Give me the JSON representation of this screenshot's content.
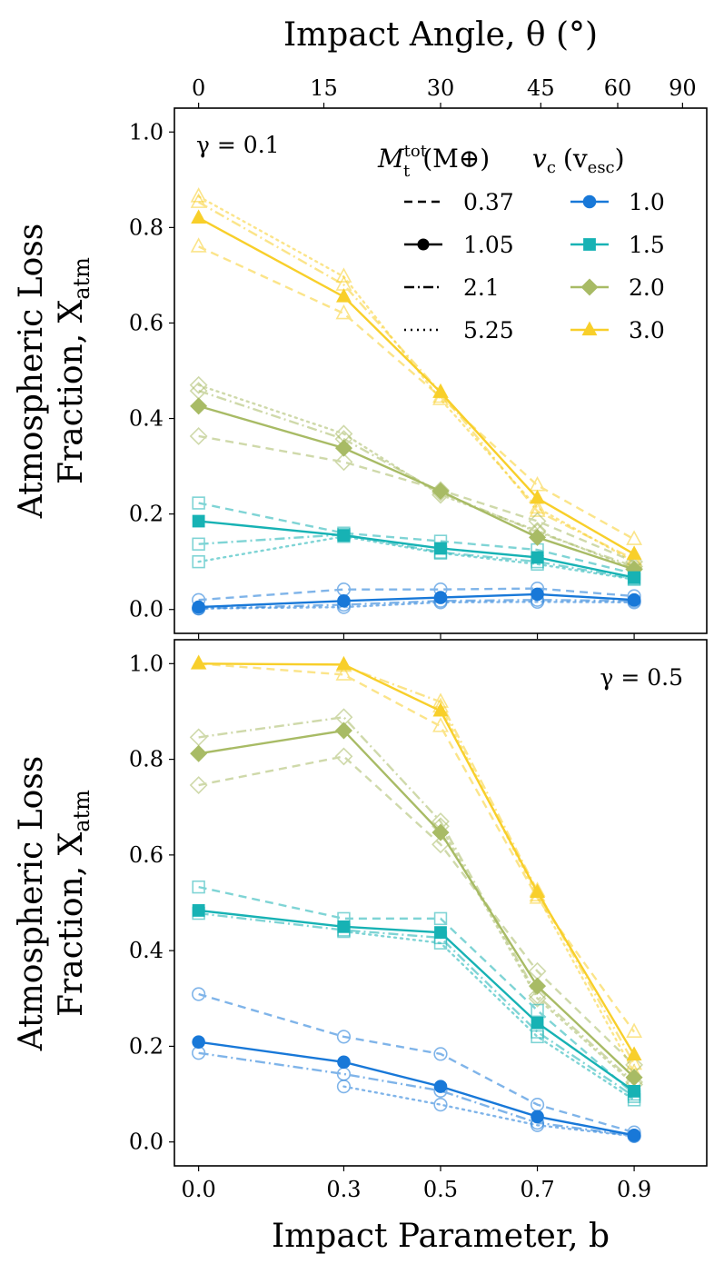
{
  "chart_data": {
    "type": "line",
    "top_axis": {
      "label": "Impact Angle, θ (°)",
      "ticks": [
        {
          "label": "0",
          "deg": 0
        },
        {
          "label": "15",
          "deg": 15
        },
        {
          "label": "30",
          "deg": 30
        },
        {
          "label": "45",
          "deg": 45
        },
        {
          "label": "60",
          "deg": 60
        },
        {
          "label": "90",
          "deg": 90
        }
      ],
      "relation": "b = sin(θ)"
    },
    "xlabel": "Impact Parameter, b",
    "x": [
      0.0,
      0.3,
      0.5,
      0.7,
      0.9
    ],
    "x_tick_labels": [
      "0.0",
      "0.3",
      "0.5",
      "0.7",
      "0.9"
    ],
    "xlim": [
      -0.05,
      1.05
    ],
    "ylabel_line1": "Atmospheric Loss",
    "ylabel_line2": "Fraction, X",
    "ylabel_sub": "atm",
    "ylim": [
      -0.05,
      1.05
    ],
    "y_ticks": [
      0.0,
      0.2,
      0.4,
      0.6,
      0.8,
      1.0
    ],
    "y_tick_labels": [
      "0.0",
      "0.2",
      "0.4",
      "0.6",
      "0.8",
      "1.0"
    ],
    "grid": false,
    "legend": {
      "placement": "top-right (upper panel)",
      "mass_title_main": "M",
      "mass_title_sup": "tot",
      "mass_title_sub": "t",
      "mass_title_unit": "(M⊕)",
      "vel_title_main": "v",
      "vel_title_sub": "c",
      "vel_title_unit_open": "(v",
      "vel_title_unit_sub": "esc",
      "vel_title_unit_close": ")",
      "mass_entries": [
        {
          "label": "0.37",
          "linestyle": "dashed"
        },
        {
          "label": "1.05",
          "linestyle": "solid"
        },
        {
          "label": "2.1",
          "linestyle": "dashdot"
        },
        {
          "label": "5.25",
          "linestyle": "dotted"
        }
      ],
      "velocity_entries": [
        {
          "label": "1.0",
          "color": "#1878d8",
          "marker": "circle"
        },
        {
          "label": "1.5",
          "color": "#17b2b4",
          "marker": "square"
        },
        {
          "label": "2.0",
          "color": "#a8bb65",
          "marker": "diamond"
        },
        {
          "label": "3.0",
          "color": "#f8cf2a",
          "marker": "triangle"
        }
      ]
    },
    "panels": [
      {
        "annotation": "γ = 0.1",
        "series": [
          {
            "vc": "3.0",
            "mass": "0.37",
            "values": [
              0.76,
              0.62,
              0.445,
              0.26,
              0.147
            ]
          },
          {
            "vc": "3.0",
            "mass": "1.05",
            "values": [
              0.82,
              0.655,
              0.455,
              0.233,
              0.116
            ]
          },
          {
            "vc": "3.0",
            "mass": "2.1",
            "values": [
              0.853,
              0.68,
              0.455,
              0.206,
              0.105
            ]
          },
          {
            "vc": "3.0",
            "mass": "5.25",
            "values": [
              0.865,
              0.697,
              0.44,
              0.213,
              0.1
            ]
          },
          {
            "vc": "2.0",
            "mass": "0.37",
            "values": [
              0.363,
              0.309,
              0.25,
              0.185,
              0.1
            ]
          },
          {
            "vc": "2.0",
            "mass": "1.05",
            "values": [
              0.426,
              0.338,
              0.248,
              0.151,
              0.084
            ]
          },
          {
            "vc": "2.0",
            "mass": "2.1",
            "values": [
              0.458,
              0.357,
              0.245,
              0.162,
              0.09
            ]
          },
          {
            "vc": "2.0",
            "mass": "5.25",
            "values": [
              0.47,
              0.368,
              0.24,
              0.165,
              0.085
            ]
          },
          {
            "vc": "1.5",
            "mass": "0.37",
            "values": [
              0.223,
              0.16,
              0.143,
              0.125,
              0.075
            ]
          },
          {
            "vc": "1.5",
            "mass": "1.05",
            "values": [
              0.185,
              0.155,
              0.128,
              0.109,
              0.067
            ]
          },
          {
            "vc": "1.5",
            "mass": "2.1",
            "values": [
              0.137,
              0.157,
              0.12,
              0.1,
              0.065
            ]
          },
          {
            "vc": "1.5",
            "mass": "5.25",
            "values": [
              0.1,
              0.153,
              0.118,
              0.095,
              0.063
            ]
          },
          {
            "vc": "1.0",
            "mass": "0.37",
            "values": [
              0.02,
              0.042,
              0.042,
              0.044,
              0.028
            ]
          },
          {
            "vc": "1.0",
            "mass": "1.05",
            "values": [
              0.005,
              0.018,
              0.025,
              0.032,
              0.02
            ]
          },
          {
            "vc": "1.0",
            "mass": "2.1",
            "values": [
              0.002,
              0.01,
              0.018,
              0.02,
              0.018
            ]
          },
          {
            "vc": "1.0",
            "mass": "5.25",
            "values": [
              0.002,
              0.005,
              0.015,
              0.016,
              0.015
            ]
          }
        ]
      },
      {
        "annotation": "γ = 0.5",
        "series": [
          {
            "vc": "3.0",
            "mass": "0.37",
            "values": [
              1.0,
              0.977,
              0.869,
              0.51,
              0.23
            ]
          },
          {
            "vc": "3.0",
            "mass": "1.05",
            "values": [
              1.0,
              0.998,
              0.901,
              0.522,
              0.182
            ]
          },
          {
            "vc": "3.0",
            "mass": "2.1",
            "values": [
              null,
              0.995,
              0.92,
              0.525,
              0.163
            ]
          },
          {
            "vc": "3.0",
            "mass": "5.25",
            "values": [
              null,
              null,
              0.91,
              0.515,
              0.145
            ]
          },
          {
            "vc": "2.0",
            "mass": "0.37",
            "values": [
              0.746,
              0.806,
              0.622,
              0.357,
              0.161
            ]
          },
          {
            "vc": "2.0",
            "mass": "1.05",
            "values": [
              0.812,
              0.86,
              0.647,
              0.326,
              0.135
            ]
          },
          {
            "vc": "2.0",
            "mass": "2.1",
            "values": [
              0.846,
              0.888,
              0.67,
              0.306,
              0.125
            ]
          },
          {
            "vc": "2.0",
            "mass": "5.25",
            "values": [
              null,
              null,
              0.66,
              0.3,
              0.12
            ]
          },
          {
            "vc": "1.5",
            "mass": "0.37",
            "values": [
              0.533,
              0.467,
              0.467,
              0.275,
              0.1
            ]
          },
          {
            "vc": "1.5",
            "mass": "1.05",
            "values": [
              0.484,
              0.45,
              0.438,
              0.249,
              0.106
            ]
          },
          {
            "vc": "1.5",
            "mass": "2.1",
            "values": [
              0.478,
              0.443,
              0.427,
              0.23,
              0.095
            ]
          },
          {
            "vc": "1.5",
            "mass": "5.25",
            "values": [
              null,
              0.44,
              0.416,
              0.22,
              0.088
            ]
          },
          {
            "vc": "1.0",
            "mass": "0.37",
            "values": [
              0.309,
              0.22,
              0.184,
              0.078,
              0.02
            ]
          },
          {
            "vc": "1.0",
            "mass": "1.05",
            "values": [
              0.209,
              0.167,
              0.116,
              0.053,
              0.014
            ]
          },
          {
            "vc": "1.0",
            "mass": "2.1",
            "values": [
              0.186,
              0.142,
              0.107,
              0.04,
              0.013
            ]
          },
          {
            "vc": "1.0",
            "mass": "5.25",
            "values": [
              null,
              0.116,
              0.078,
              0.035,
              0.012
            ]
          }
        ]
      }
    ]
  }
}
